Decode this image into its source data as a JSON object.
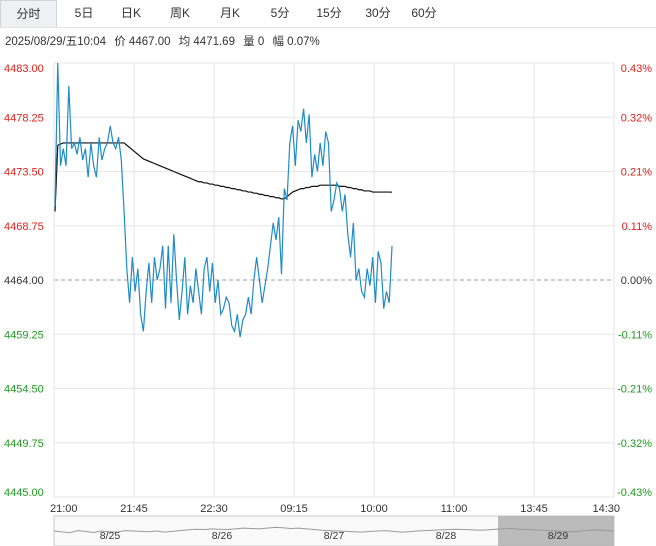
{
  "tabs": [
    {
      "label": "分时",
      "active": true
    },
    {
      "label": "5日",
      "active": false
    },
    {
      "label": "日K",
      "active": false
    },
    {
      "label": "周K",
      "active": false
    },
    {
      "label": "月K",
      "active": false
    },
    {
      "label": "5分",
      "active": false
    },
    {
      "label": "15分",
      "active": false
    },
    {
      "label": "30分",
      "active": false
    },
    {
      "label": "60分",
      "active": false
    }
  ],
  "info": {
    "datetime": "2025/08/29/五10:04",
    "price": "价 4467.00",
    "avg": "均 4471.69",
    "volume": "量 0",
    "change": "幅 0.07%"
  },
  "colors": {
    "up": "#e0201b",
    "down": "#1f9a1f",
    "price_line": "#1f8bc7",
    "avg_line": "#111111",
    "grid": "#e6e6e6",
    "baseline": "#9aa0a6"
  },
  "chart_data": {
    "type": "line",
    "prev_close": 4464.0,
    "y_ticks": [
      "4483.00",
      "4478.25",
      "4473.50",
      "4468.75",
      "4464.00",
      "4459.25",
      "4454.50",
      "4449.75",
      "4445.00"
    ],
    "pct_ticks": [
      "0.43%",
      "0.32%",
      "0.21%",
      "0.11%",
      "0.00%",
      "-0.11%",
      "-0.21%",
      "-0.32%",
      "-0.43%"
    ],
    "ylim": [
      4445.0,
      4483.0
    ],
    "x_ticks": [
      "21:00",
      "21:45",
      "22:30",
      "09:15",
      "10:00",
      "11:00",
      "13:45",
      "14:30"
    ],
    "navigator_labels": [
      "8/25",
      "8/26",
      "8/27",
      "8/28",
      "8/29"
    ],
    "series": [
      {
        "key": "price",
        "values": [
          4470.5,
          4483.0,
          4474.0,
          4475.5,
          4474.0,
          4481.0,
          4475.5,
          4476.0,
          4475.0,
          4476.5,
          4474.5,
          4475.5,
          4473.0,
          4476.0,
          4474.0,
          4473.0,
          4476.5,
          4474.5,
          4475.5,
          4476.0,
          4477.5,
          4476.0,
          4475.5,
          4476.5,
          4474.5,
          4470.0,
          4465.0,
          4462.0,
          4466.0,
          4463.0,
          4465.0,
          4461.0,
          4459.5,
          4463.0,
          4465.5,
          4462.0,
          4466.0,
          4464.0,
          4465.0,
          4467.0,
          4461.5,
          4467.0,
          4462.0,
          4468.0,
          4464.0,
          4460.5,
          4463.0,
          4466.0,
          4461.0,
          4463.5,
          4462.0,
          4465.0,
          4463.0,
          4461.0,
          4465.0,
          4466.0,
          4463.0,
          4465.5,
          4462.0,
          4464.0,
          4461.0,
          4461.5,
          4462.5,
          4462.0,
          4460.0,
          4459.5,
          4461.0,
          4459.0,
          4460.5,
          4461.0,
          4462.5,
          4461.0,
          4464.0,
          4466.0,
          4464.0,
          4462.0,
          4463.5,
          4465.0,
          4467.0,
          4469.0,
          4467.5,
          4469.5,
          4464.5,
          4472.0,
          4471.0,
          4476.0,
          4477.5,
          4474.0,
          4478.0,
          4477.0,
          4479.0,
          4476.0,
          4478.5,
          4473.0,
          4475.0,
          4473.5,
          4476.0,
          4474.0,
          4477.0,
          4476.0,
          4470.0,
          4471.0,
          4472.5,
          4472.0,
          4470.0,
          4471.5,
          4468.0,
          4466.0,
          4469.0,
          4464.0,
          4465.0,
          4463.0,
          4462.5,
          4465.0,
          4463.5,
          4466.0,
          4462.0,
          4466.5,
          4465.5,
          4461.5,
          4463.0,
          4462.0,
          4467.0
        ],
        "color": "#1f8bc7"
      },
      {
        "key": "average",
        "values": [
          4470.0,
          4475.8,
          4475.9,
          4476.0,
          4476.0,
          4476.0,
          4476.0,
          4476.0,
          4476.0,
          4476.0,
          4476.0,
          4476.0,
          4476.0,
          4476.0,
          4476.0,
          4476.0,
          4476.0,
          4476.0,
          4476.0,
          4476.0,
          4476.0,
          4476.0,
          4476.0,
          4476.0,
          4476.0,
          4476.0,
          4475.8,
          4475.6,
          4475.4,
          4475.2,
          4475.0,
          4474.8,
          4474.6,
          4474.5,
          4474.4,
          4474.3,
          4474.2,
          4474.1,
          4474.0,
          4473.9,
          4473.8,
          4473.7,
          4473.6,
          4473.5,
          4473.4,
          4473.3,
          4473.2,
          4473.1,
          4473.0,
          4472.9,
          4472.8,
          4472.7,
          4472.6,
          4472.6,
          4472.5,
          4472.5,
          4472.4,
          4472.4,
          4472.3,
          4472.3,
          4472.2,
          4472.2,
          4472.1,
          4472.1,
          4472.0,
          4472.0,
          4471.9,
          4471.9,
          4471.8,
          4471.8,
          4471.7,
          4471.7,
          4471.6,
          4471.6,
          4471.5,
          4471.5,
          4471.4,
          4471.4,
          4471.3,
          4471.3,
          4471.2,
          4471.2,
          4471.1,
          4471.1,
          4471.3,
          4471.5,
          4471.7,
          4471.8,
          4471.9,
          4472.0,
          4472.0,
          4472.1,
          4472.1,
          4472.2,
          4472.2,
          4472.2,
          4472.3,
          4472.3,
          4472.3,
          4472.3,
          4472.3,
          4472.3,
          4472.3,
          4472.2,
          4472.2,
          4472.2,
          4472.1,
          4472.1,
          4472.0,
          4472.0,
          4471.9,
          4471.9,
          4471.8,
          4471.8,
          4471.8,
          4471.7,
          4471.7,
          4471.7,
          4471.7,
          4471.7,
          4471.7,
          4471.7,
          4471.69
        ],
        "color": "#111111"
      }
    ],
    "total_slots": 405,
    "navigator": {
      "range_highlight": "8/29",
      "values": [
        0.5,
        0.45,
        0.4,
        0.52,
        0.48,
        0.42,
        0.5,
        0.46,
        0.44,
        0.52,
        0.5,
        0.48,
        0.46,
        0.5,
        0.44,
        0.48,
        0.52,
        0.56,
        0.6,
        0.58,
        0.62,
        0.6,
        0.58,
        0.62,
        0.66,
        0.64,
        0.62,
        0.66,
        0.7,
        0.68,
        0.64,
        0.66,
        0.62,
        0.58,
        0.54,
        0.52,
        0.5,
        0.48,
        0.46,
        0.44,
        0.48,
        0.5,
        0.52,
        0.48,
        0.44,
        0.46,
        0.5,
        0.52,
        0.54,
        0.56,
        0.58,
        0.6,
        0.58,
        0.56,
        0.54,
        0.56,
        0.6,
        0.62,
        0.64,
        0.6,
        0.58,
        0.56,
        0.54,
        0.52,
        0.5,
        0.48,
        0.46,
        0.5,
        0.54,
        0.56,
        0.52,
        0.5
      ]
    }
  }
}
